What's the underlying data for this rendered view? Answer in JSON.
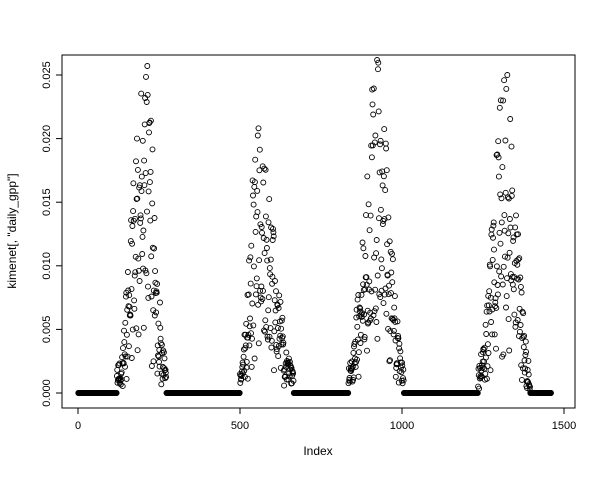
{
  "chart_data": {
    "type": "scatter",
    "title": "",
    "xlabel": "Index",
    "ylabel": "kimenet[, \"daily_gpp\"]",
    "xlim": [
      0,
      1500
    ],
    "ylim": [
      0.0,
      0.025
    ],
    "x_ticks": [
      0,
      500,
      1000,
      1500
    ],
    "x_tick_labels": [
      "0",
      "500",
      "1000",
      "1500"
    ],
    "y_ticks": [
      0.0,
      0.005,
      0.01,
      0.015,
      0.02,
      0.025
    ],
    "y_tick_labels": [
      "0.000",
      "0.005",
      "0.010",
      "0.015",
      "0.020",
      "0.025"
    ],
    "grid": false,
    "legend": "none",
    "marker": "open-circle",
    "point_color": "#000000",
    "background_color": "#ffffff",
    "n_points": 1460,
    "baseline_value": 0.0,
    "seed": 42,
    "seasonal_peaks": [
      {
        "start": 120,
        "center": 208,
        "end": 272,
        "peak_value": 0.0258
      },
      {
        "start": 500,
        "center": 555,
        "end": 665,
        "peak_value": 0.0205
      },
      {
        "start": 835,
        "center": 925,
        "end": 1005,
        "peak_value": 0.0257
      },
      {
        "start": 1235,
        "center": 1320,
        "end": 1395,
        "peak_value": 0.0248
      }
    ]
  }
}
